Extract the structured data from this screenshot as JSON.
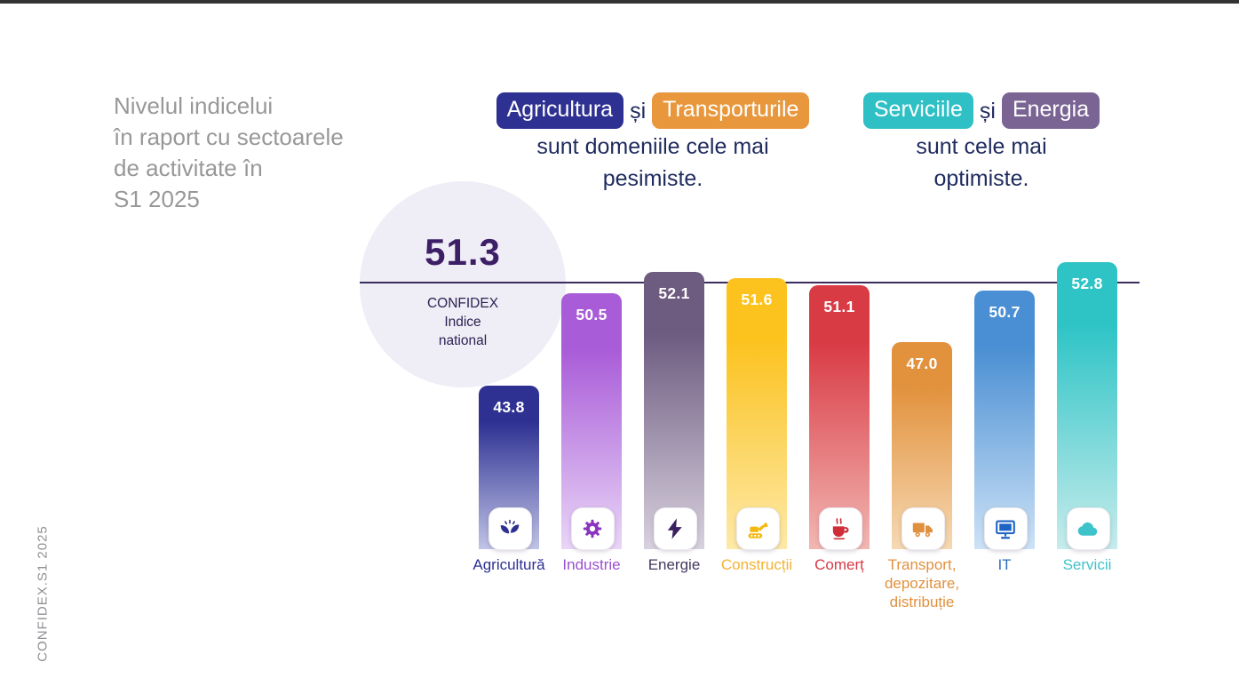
{
  "side_label": "CONFIDEX.S1 2025",
  "title": {
    "lines": [
      "Nivelul indicelui",
      "în raport cu sectoarele",
      "de activitate în",
      "S1 2025"
    ]
  },
  "headline_pesimiste": {
    "pill1": {
      "label": "Agricultura",
      "color": "#2e3192"
    },
    "conjunction": "și",
    "pill2": {
      "label": "Transporturile",
      "color": "#e8973c"
    },
    "line2": "sunt domeniile cele mai",
    "line3": "pesimiste."
  },
  "headline_optimiste": {
    "pill1": {
      "label": "Serviciile",
      "color": "#2fc0c6"
    },
    "conjunction": "și",
    "pill2": {
      "label": "Energia",
      "color": "#7a6493"
    },
    "line2": "sunt cele mai",
    "line3": "optimiste."
  },
  "national_index": {
    "value": "51.3",
    "label_lines": [
      "CONFIDEX",
      "Indice",
      "national"
    ]
  },
  "colors": {
    "headline_text": "#1f2b5e",
    "title_gray": "#98989a",
    "circle_bg": "#efedf5",
    "reference_line": "#3b2d5e"
  },
  "chart_data": {
    "type": "bar",
    "title": "Nivelul indicelui în raport cu sectoarele de activitate în S1 2025",
    "categories": [
      "Agricultură",
      "Industrie",
      "Energie",
      "Construcții",
      "Comerț",
      "Transport, depozitare, distribuție",
      "IT",
      "Servicii"
    ],
    "values": [
      43.8,
      50.5,
      52.1,
      51.6,
      51.1,
      47.0,
      50.7,
      52.8
    ],
    "bar_colors": [
      "#2e3192",
      "#a95cd8",
      "#6d5b80",
      "#fcc21d",
      "#d93b45",
      "#e2923d",
      "#4a8fd3",
      "#2ec4c6"
    ],
    "reference_line": {
      "value": 51.3,
      "label": "CONFIDEX Indice national"
    },
    "ylim": [
      32,
      56
    ],
    "grid": false,
    "legend": false
  },
  "bars": [
    {
      "name": "agricultura",
      "label": "Agricultură",
      "value": 43.8,
      "value_label": "43.8",
      "color_top": "#2e3192",
      "color_bottom": "#c0c4e6",
      "label_color": "#2e3192",
      "icon": "agriculture-plant-icon",
      "icon_color": "#2e3192"
    },
    {
      "name": "industrie",
      "label": "Industrie",
      "value": 50.5,
      "value_label": "50.5",
      "color_top": "#a95cd8",
      "color_bottom": "#e9d6f7",
      "label_color": "#9b4fd0",
      "icon": "industry-gear-icon",
      "icon_color": "#8a35c0"
    },
    {
      "name": "energie",
      "label": "Energie",
      "value": 52.1,
      "value_label": "52.1",
      "color_top": "#6d5b80",
      "color_bottom": "#d8d1de",
      "label_color": "#44385f",
      "icon": "lightning-icon",
      "icon_color": "#3a2060"
    },
    {
      "name": "constructii",
      "label": "Construcții",
      "value": 51.6,
      "value_label": "51.6",
      "color_top": "#fcc21d",
      "color_bottom": "#fde9a8",
      "label_color": "#f2b335",
      "icon": "excavator-icon",
      "icon_color": "#f5b80c"
    },
    {
      "name": "comert",
      "label": "Comerț",
      "value": 51.1,
      "value_label": "51.1",
      "color_top": "#d93b45",
      "color_bottom": "#f2b7b3",
      "label_color": "#d63a45",
      "icon": "coffee-cup-icon",
      "icon_color": "#cf2e39"
    },
    {
      "name": "transport",
      "label": "Transport,\ndepozitare,\ndistribuție",
      "value": 47.0,
      "value_label": "47.0",
      "color_top": "#e2923d",
      "color_bottom": "#f6d9b4",
      "label_color": "#e0913f",
      "icon": "truck-icon",
      "icon_color": "#e0913f"
    },
    {
      "name": "it",
      "label": "IT",
      "value": 50.7,
      "value_label": "50.7",
      "color_top": "#4a8fd3",
      "color_bottom": "#cde2f6",
      "label_color": "#2d6fc2",
      "icon": "monitor-icon",
      "icon_color": "#1d64c4"
    },
    {
      "name": "servicii",
      "label": "Servicii",
      "value": 52.8,
      "value_label": "52.8",
      "color_top": "#2ec4c6",
      "color_bottom": "#c7ecec",
      "label_color": "#3fc3ca",
      "icon": "cloud-icon",
      "icon_color": "#3fc3ca"
    }
  ]
}
